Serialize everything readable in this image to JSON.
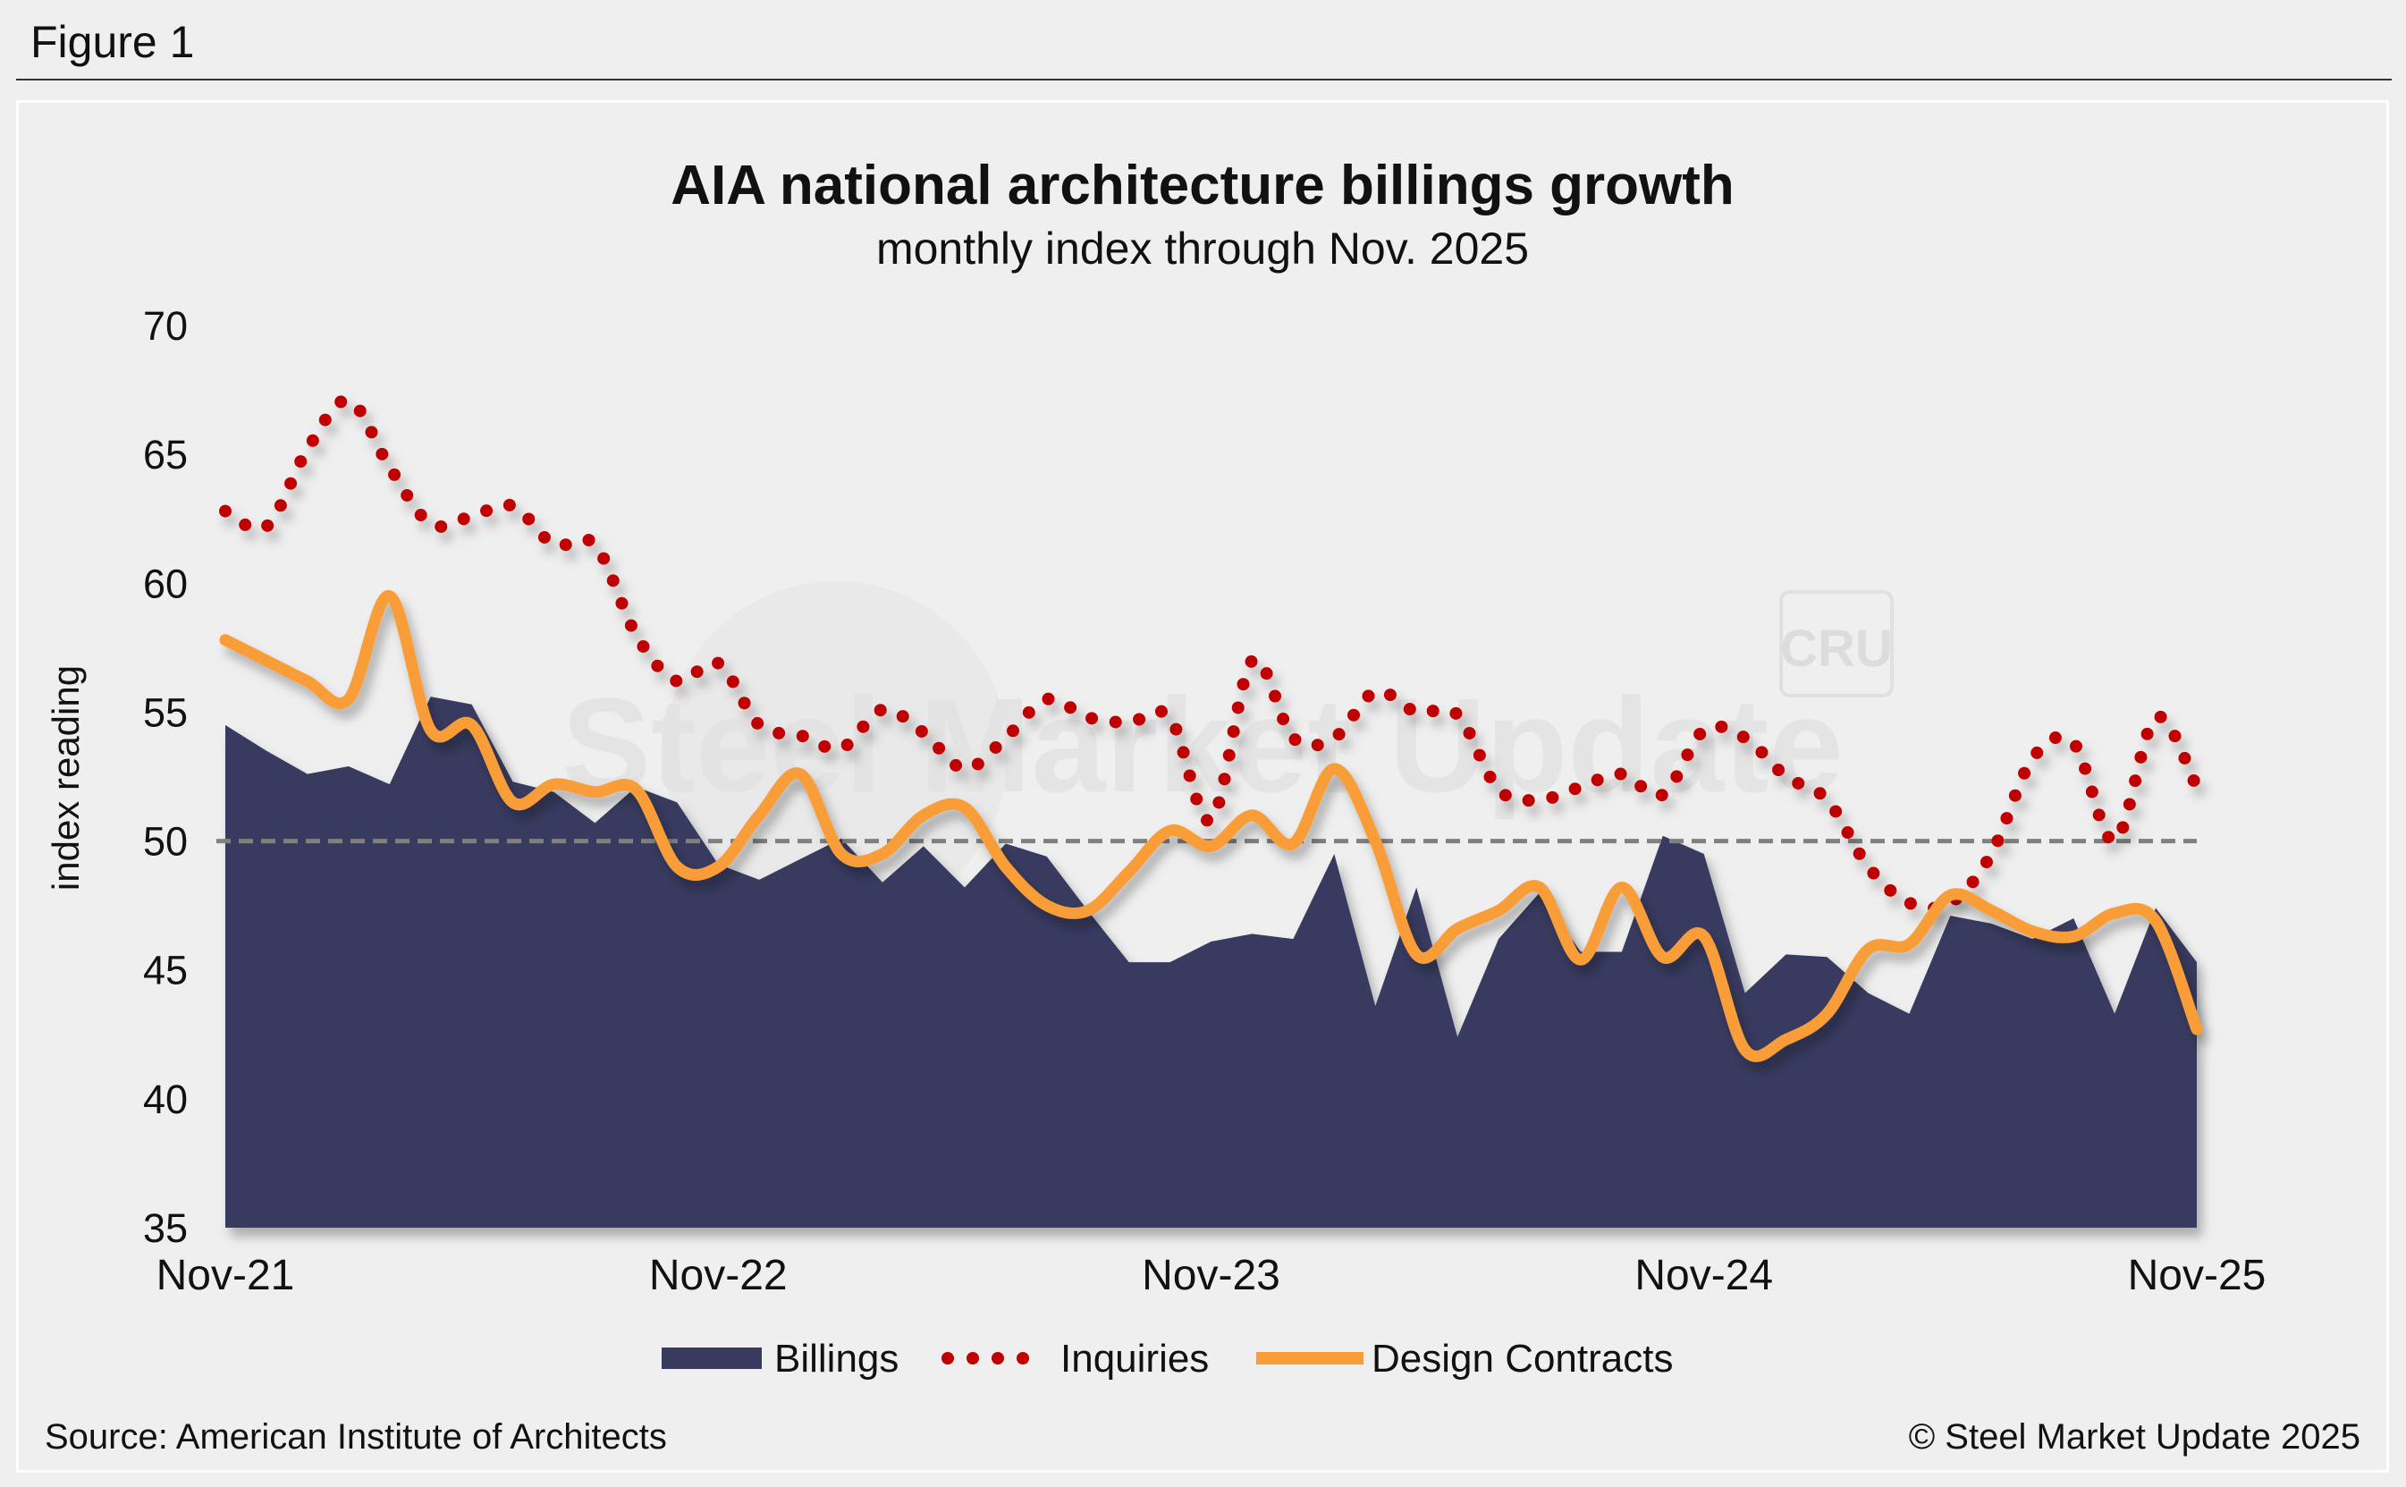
{
  "figure_label": "Figure 1",
  "source": "Source: American Institute of Architects",
  "copyright": "© Steel Market Update 2025",
  "watermark": "Steel Market Update",
  "watermark_logo": "CRU",
  "colors": {
    "billings": "#383a5e",
    "inquiries": "#c00000",
    "design": "#f99d38",
    "reference": "#808080"
  },
  "chart_data": {
    "type": "area",
    "title": "AIA national architecture billings growth",
    "subtitle": "monthly index through Nov. 2025",
    "xlabel": "",
    "ylabel": "index reading",
    "ylim": [
      35,
      70
    ],
    "yticks": [
      35,
      40,
      45,
      50,
      55,
      60,
      65,
      70
    ],
    "xtick_labels": [
      "Nov-21",
      "Nov-22",
      "Nov-23",
      "Nov-24",
      "Nov-25"
    ],
    "x_start": "Nov-21",
    "x_end": "Nov-25",
    "frequency": "monthly",
    "reference_line": 50,
    "legend_position": "bottom",
    "series": [
      {
        "name": "Billings",
        "style": "area",
        "values": [
          54.5,
          53.5,
          52.6,
          52.9,
          52.2,
          55.6,
          55.3,
          52.3,
          51.9,
          50.7,
          52.1,
          51.5,
          49.1,
          48.5,
          49.3,
          50.1,
          48.4,
          49.8,
          48.2,
          49.9,
          49.4,
          47.3,
          45.3,
          45.3,
          46.1,
          46.4,
          46.2,
          49.5,
          43.6,
          48.2,
          42.4,
          46.2,
          48.0,
          45.7,
          45.7,
          50.2,
          49.5,
          44.1,
          45.6,
          45.5,
          44.1,
          43.3,
          47.1,
          46.8,
          46.2,
          47.0,
          43.3,
          47.4,
          45.3
        ]
      },
      {
        "name": "Inquiries",
        "style": "dotted",
        "values": [
          62.8,
          62.2,
          65.2,
          67.1,
          64.5,
          62.3,
          62.6,
          63.0,
          61.5,
          61.5,
          58.0,
          56.2,
          56.9,
          54.5,
          54.1,
          53.6,
          55.1,
          54.2,
          52.8,
          54.0,
          55.5,
          54.8,
          54.6,
          54.8,
          50.8,
          57.0,
          54.0,
          54.0,
          55.8,
          55.0,
          54.9,
          52.0,
          51.6,
          52.1,
          52.6,
          51.8,
          54.3,
          54.0,
          52.5,
          51.6,
          49.0,
          47.6,
          47.6,
          49.5,
          53.2,
          53.8,
          50.0,
          54.8,
          52.1
        ]
      },
      {
        "name": "Design Contracts",
        "style": "line",
        "values": [
          57.8,
          57.0,
          56.2,
          55.5,
          59.5,
          54.3,
          54.5,
          51.5,
          52.2,
          51.9,
          52.0,
          49.0,
          49.0,
          51.0,
          52.6,
          49.5,
          49.5,
          51.0,
          51.3,
          49.0,
          47.5,
          47.3,
          48.8,
          50.4,
          49.8,
          51.0,
          49.9,
          52.8,
          50.0,
          45.6,
          46.6,
          47.3,
          48.2,
          45.4,
          48.2,
          45.5,
          46.3,
          41.9,
          42.3,
          43.3,
          45.8,
          46.0,
          47.9,
          47.3,
          46.5,
          46.3,
          47.2,
          46.9,
          42.7
        ]
      }
    ]
  }
}
